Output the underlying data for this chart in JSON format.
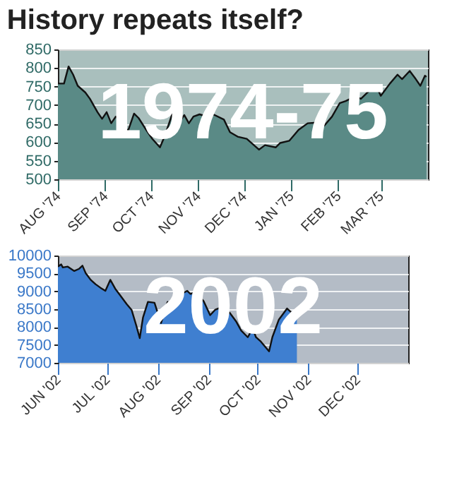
{
  "chart_data": [
    {
      "type": "area",
      "title": "History repeats itself?",
      "annotations": [
        "1974-75"
      ],
      "x": [
        "1974-08-01",
        "1974-08-05",
        "1974-08-08",
        "1974-08-11",
        "1974-08-14",
        "1974-08-19",
        "1974-08-22",
        "1974-08-27",
        "1974-08-30",
        "1974-09-02",
        "1974-09-05",
        "1974-09-08",
        "1974-09-11",
        "1974-09-16",
        "1974-09-20",
        "1974-09-23",
        "1974-09-28",
        "1974-10-02",
        "1974-10-07",
        "1974-10-10",
        "1974-10-15",
        "1974-10-18",
        "1974-10-23",
        "1974-10-26",
        "1974-10-29",
        "1974-11-02",
        "1974-11-07",
        "1974-11-11",
        "1974-11-18",
        "1974-11-22",
        "1974-11-27",
        "1974-12-03",
        "1974-12-11",
        "1974-12-15",
        "1974-12-22",
        "1974-12-25",
        "1974-12-31",
        "1975-01-06",
        "1975-01-12",
        "1975-01-19",
        "1975-01-23",
        "1975-01-28",
        "1975-02-02",
        "1975-02-06",
        "1975-02-12",
        "1975-02-16",
        "1975-02-22",
        "1975-02-26",
        "1975-03-01",
        "1975-03-07",
        "1975-03-12",
        "1975-03-15",
        "1975-03-20",
        "1975-03-24",
        "1975-03-27",
        "1975-03-30",
        "1975-03-31"
      ],
      "series": [
        {
          "color": "#5a8a86",
          "values": [
            758,
            758,
            804,
            782,
            752,
            734,
            717,
            681,
            663,
            681,
            651,
            669,
            657,
            630,
            677,
            665,
            633,
            609,
            586,
            615,
            675,
            645,
            673,
            651,
            669,
            675,
            669,
            675,
            661,
            627,
            615,
            609,
            580,
            592,
            586,
            598,
            604,
            633,
            651,
            653,
            645,
            669,
            705,
            711,
            723,
            717,
            741,
            752,
            725,
            758,
            782,
            770,
            792,
            770,
            752,
            779,
            776
          ]
        }
      ],
      "xlim": [
        "1974-08-01",
        "1975-04-01"
      ],
      "xticks": [
        {
          "value": "1974-08-01",
          "label": "AUG '74"
        },
        {
          "value": "1974-09-01",
          "label": "SEP '74"
        },
        {
          "value": "1974-10-01",
          "label": "OCT '74"
        },
        {
          "value": "1974-11-01",
          "label": "NOV '74"
        },
        {
          "value": "1974-12-01",
          "label": "DEC '74"
        },
        {
          "value": "1975-01-01",
          "label": "JAN '75"
        },
        {
          "value": "1975-02-01",
          "label": "FEB '75"
        },
        {
          "value": "1975-03-01",
          "label": "MAR '75"
        }
      ],
      "ylim": [
        500,
        850
      ],
      "yticks": [
        500,
        550,
        600,
        650,
        700,
        750,
        800,
        850
      ],
      "grid": "y"
    },
    {
      "type": "area",
      "annotations": [
        "2002"
      ],
      "x": [
        "2002-06-01",
        "2002-06-03",
        "2002-06-04",
        "2002-06-07",
        "2002-06-11",
        "2002-06-14",
        "2002-06-16",
        "2002-06-18",
        "2002-06-21",
        "2002-06-24",
        "2002-06-27",
        "2002-06-30",
        "2002-07-03",
        "2002-07-06",
        "2002-07-09",
        "2002-07-13",
        "2002-07-16",
        "2002-07-19",
        "2002-07-21",
        "2002-07-23",
        "2002-07-26",
        "2002-07-30",
        "2002-08-03",
        "2002-08-07",
        "2002-08-11",
        "2002-08-14",
        "2002-08-19",
        "2002-08-21",
        "2002-08-24",
        "2002-08-29",
        "2002-09-02",
        "2002-09-05",
        "2002-09-09",
        "2002-09-14",
        "2002-09-18",
        "2002-09-21",
        "2002-09-25",
        "2002-09-28",
        "2002-09-30",
        "2002-10-03",
        "2002-10-08",
        "2002-10-10",
        "2002-10-14",
        "2002-10-16",
        "2002-10-19",
        "2002-10-22",
        "2002-10-25"
      ],
      "series": [
        {
          "color": "#3f7fd0",
          "values": [
            9691,
            9753,
            9667,
            9691,
            9568,
            9630,
            9716,
            9506,
            9321,
            9198,
            9099,
            9012,
            9321,
            9074,
            8889,
            8642,
            8481,
            8025,
            7691,
            8272,
            8704,
            8679,
            8111,
            8704,
            8556,
            8889,
            9012,
            8926,
            8975,
            8728,
            8333,
            8481,
            8556,
            8395,
            8148,
            7901,
            7716,
            7963,
            7716,
            7593,
            7321,
            7716,
            8210,
            8333,
            8519,
            8395,
            8432
          ]
        }
      ],
      "xlim": [
        "2002-06-01",
        "2003-01-01"
      ],
      "xticks": [
        {
          "value": "2002-06-01",
          "label": "JUN '02"
        },
        {
          "value": "2002-07-01",
          "label": "JUL '02"
        },
        {
          "value": "2002-08-01",
          "label": "AUG '02"
        },
        {
          "value": "2002-09-01",
          "label": "SEP '02"
        },
        {
          "value": "2002-10-01",
          "label": "OCT '02"
        },
        {
          "value": "2002-11-01",
          "label": "NOV '02"
        },
        {
          "value": "2002-12-01",
          "label": "DEC '02"
        }
      ],
      "ylim": [
        7000,
        10000
      ],
      "yticks": [
        7000,
        7500,
        8000,
        8500,
        9000,
        9500,
        10000
      ],
      "grid": "y"
    }
  ]
}
